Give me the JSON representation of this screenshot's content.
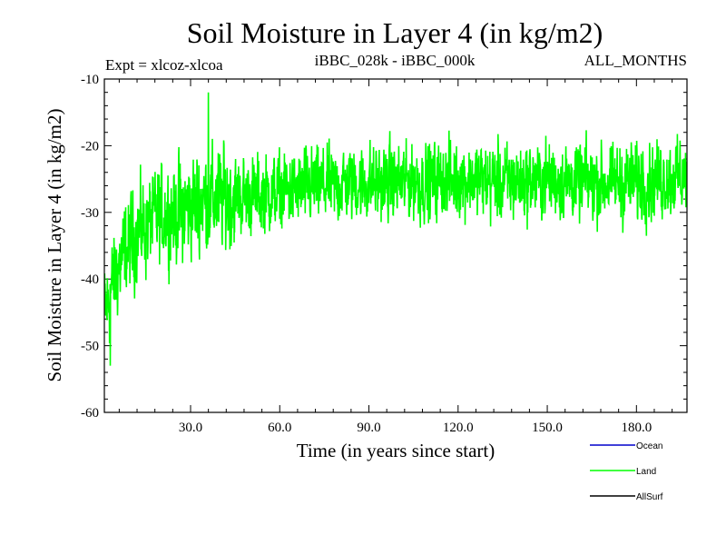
{
  "chart_data": {
    "type": "line",
    "title": "Soil Moisture in Layer 4 (in kg/m2)",
    "subtitle_left": "Expt = xlcoz-xlcoa",
    "subtitle_center": "iBBC_028k - iBBC_000k",
    "subtitle_right": "ALL_MONTHS",
    "xlabel": "Time (in years since start)",
    "ylabel": "Soil Moisture in Layer 4 (in kg/m2)",
    "xlim": [
      1,
      197
    ],
    "ylim": [
      -60,
      -10
    ],
    "x_ticks": [
      30,
      60,
      90,
      120,
      150,
      180
    ],
    "x_tick_labels": [
      "30.0",
      "60.0",
      "90.0",
      "120.0",
      "150.0",
      "180.0"
    ],
    "y_ticks": [
      -10,
      -20,
      -30,
      -40,
      -50,
      -60
    ],
    "y_tick_labels": [
      "-10",
      "-20",
      "-30",
      "-40",
      "-50",
      "-60"
    ],
    "legend_position": "bottom-right",
    "legend": [
      {
        "name": "Ocean",
        "color": "#0000cc"
      },
      {
        "name": "Land",
        "color": "#00ff00"
      },
      {
        "name": "AllSurf",
        "color": "#000000"
      }
    ],
    "series": [
      {
        "name": "Land",
        "color": "#00ff00",
        "x_start": 1,
        "x_step_years": 0.0833,
        "envelope_years": [
          1,
          3,
          5,
          8,
          12,
          18,
          25,
          30,
          35,
          40,
          50,
          60,
          75,
          90,
          110,
          120,
          135,
          150,
          165,
          180,
          190,
          197
        ],
        "envelope_mean": [
          -45,
          -42,
          -39,
          -36,
          -33,
          -31,
          -30,
          -29,
          -28,
          -28,
          -27.5,
          -27,
          -26,
          -25.5,
          -25.5,
          -25,
          -25.5,
          -25,
          -25.5,
          -25.5,
          -25,
          -24.5
        ],
        "noise_amplitude": 4.0,
        "peak_max": {
          "x": 36,
          "y": -12
        },
        "trough_min": {
          "x": 3,
          "y": -53
        }
      }
    ]
  }
}
